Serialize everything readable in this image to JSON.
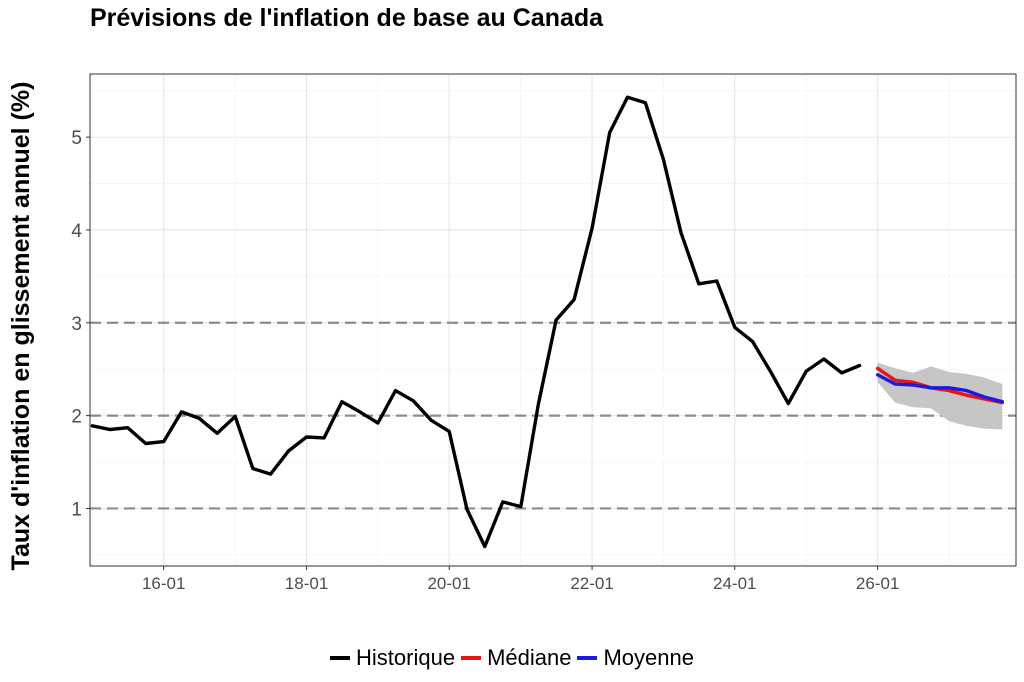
{
  "chart_data": {
    "type": "line",
    "title": "Prévisions de l'inflation de base au Canada",
    "xlabel": "",
    "ylabel": "Taux d'inflation en glissement annuel (%)",
    "xlim": [
      "2014-12-20",
      "2027-12-10"
    ],
    "ylim": [
      0.38,
      5.68
    ],
    "x_ticks": [
      {
        "date": "2016-01-01",
        "label": "16-01"
      },
      {
        "date": "2018-01-01",
        "label": "18-01"
      },
      {
        "date": "2020-01-01",
        "label": "20-01"
      },
      {
        "date": "2022-01-01",
        "label": "22-01"
      },
      {
        "date": "2024-01-01",
        "label": "24-01"
      },
      {
        "date": "2026-01-01",
        "label": "26-01"
      }
    ],
    "y_ticks": [
      1,
      2,
      3,
      4,
      5
    ],
    "reference_lines": [
      1,
      2,
      3
    ],
    "grid": true,
    "legend_position": "bottom",
    "series": [
      {
        "name": "Historique",
        "color": "#000000",
        "points": [
          [
            "2015-01-01",
            1.89
          ],
          [
            "2015-04-01",
            1.85
          ],
          [
            "2015-07-01",
            1.87
          ],
          [
            "2015-10-01",
            1.7
          ],
          [
            "2016-01-01",
            1.72
          ],
          [
            "2016-04-01",
            2.04
          ],
          [
            "2016-07-01",
            1.97
          ],
          [
            "2016-10-01",
            1.81
          ],
          [
            "2017-01-01",
            1.99
          ],
          [
            "2017-04-01",
            1.43
          ],
          [
            "2017-07-01",
            1.37
          ],
          [
            "2017-10-01",
            1.62
          ],
          [
            "2018-01-01",
            1.77
          ],
          [
            "2018-04-01",
            1.76
          ],
          [
            "2018-07-01",
            2.15
          ],
          [
            "2018-10-01",
            2.04
          ],
          [
            "2019-01-01",
            1.92
          ],
          [
            "2019-04-01",
            2.27
          ],
          [
            "2019-07-01",
            2.16
          ],
          [
            "2019-10-01",
            1.95
          ],
          [
            "2020-01-01",
            1.83
          ],
          [
            "2020-04-01",
            0.99
          ],
          [
            "2020-07-01",
            0.59
          ],
          [
            "2020-10-01",
            1.07
          ],
          [
            "2021-01-01",
            1.02
          ],
          [
            "2021-04-01",
            2.12
          ],
          [
            "2021-07-01",
            3.03
          ],
          [
            "2021-10-01",
            3.25
          ],
          [
            "2022-01-01",
            4.02
          ],
          [
            "2022-04-01",
            5.05
          ],
          [
            "2022-07-01",
            5.43
          ],
          [
            "2022-10-01",
            5.37
          ],
          [
            "2023-01-01",
            4.76
          ],
          [
            "2023-04-01",
            3.97
          ],
          [
            "2023-07-01",
            3.42
          ],
          [
            "2023-10-01",
            3.45
          ],
          [
            "2024-01-01",
            2.95
          ],
          [
            "2024-04-01",
            2.8
          ],
          [
            "2024-07-01",
            2.48
          ],
          [
            "2024-10-01",
            2.13
          ],
          [
            "2025-01-01",
            2.48
          ],
          [
            "2025-04-01",
            2.61
          ],
          [
            "2025-07-01",
            2.46
          ],
          [
            "2025-10-01",
            2.54
          ]
        ]
      },
      {
        "name": "Médiane",
        "color": "#e8141a",
        "points": [
          [
            "2026-01-01",
            2.51
          ],
          [
            "2026-04-01",
            2.38
          ],
          [
            "2026-07-01",
            2.36
          ],
          [
            "2026-10-01",
            2.3
          ],
          [
            "2027-01-01",
            2.27
          ],
          [
            "2027-04-01",
            2.22
          ],
          [
            "2027-07-01",
            2.18
          ],
          [
            "2027-10-01",
            2.14
          ]
        ]
      },
      {
        "name": "Moyenne",
        "color": "#1a1ae0",
        "points": [
          [
            "2026-01-01",
            2.44
          ],
          [
            "2026-04-01",
            2.34
          ],
          [
            "2026-07-01",
            2.33
          ],
          [
            "2026-10-01",
            2.3
          ],
          [
            "2027-01-01",
            2.3
          ],
          [
            "2027-04-01",
            2.27
          ],
          [
            "2027-07-01",
            2.2
          ],
          [
            "2027-10-01",
            2.15
          ]
        ]
      }
    ],
    "band": {
      "color": "#c6c6c6",
      "points": [
        [
          "2026-01-01",
          2.36,
          2.57
        ],
        [
          "2026-04-01",
          2.14,
          2.51
        ],
        [
          "2026-07-01",
          2.09,
          2.46
        ],
        [
          "2026-10-01",
          2.08,
          2.53
        ],
        [
          "2027-01-01",
          1.94,
          2.47
        ],
        [
          "2027-04-01",
          1.89,
          2.45
        ],
        [
          "2027-07-01",
          1.86,
          2.41
        ],
        [
          "2027-10-01",
          1.85,
          2.34
        ]
      ]
    }
  }
}
